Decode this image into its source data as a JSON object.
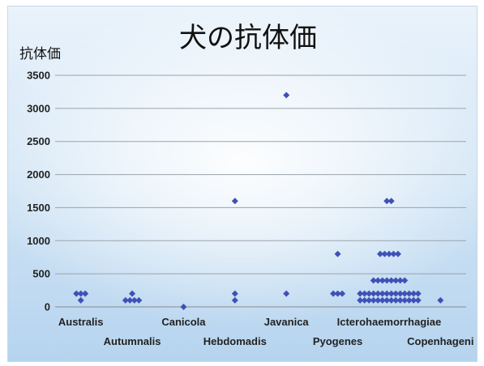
{
  "chart_data": {
    "type": "scatter",
    "title": "犬の抗体価",
    "ylabel": "抗体価",
    "xlabel": "",
    "ylim": [
      0,
      3500
    ],
    "yticks": [
      0,
      500,
      1000,
      1500,
      2000,
      2500,
      3000,
      3500
    ],
    "grid": true,
    "categories": [
      "Australis",
      "Autumnalis",
      "Canicola",
      "Hebdomadis",
      "Javanica",
      "Pyogenes",
      "Icterohaemorrhagiae",
      "Copenhageni"
    ],
    "marker_color": "#3f51b5",
    "points": [
      {
        "category": "Australis",
        "values": [
          200,
          200,
          200,
          100
        ]
      },
      {
        "category": "Autumnalis",
        "values": [
          200,
          100,
          100,
          100,
          100
        ]
      },
      {
        "category": "Canicola",
        "values": [
          0
        ]
      },
      {
        "category": "Hebdomadis",
        "values": [
          1600,
          200,
          100
        ]
      },
      {
        "category": "Javanica",
        "values": [
          3200,
          200
        ]
      },
      {
        "category": "Pyogenes",
        "values": [
          800,
          200,
          200,
          200
        ]
      },
      {
        "category": "Icterohaemorrhagiae",
        "values": [
          1600,
          1600,
          800,
          800,
          800,
          800,
          800,
          400,
          400,
          400,
          400,
          400,
          400,
          400,
          400,
          200,
          200,
          200,
          200,
          200,
          200,
          200,
          200,
          200,
          200,
          200,
          200,
          200,
          200,
          100,
          100,
          100,
          100,
          100,
          100,
          100,
          100,
          100,
          100,
          100,
          100,
          100,
          100
        ]
      },
      {
        "category": "Copenhageni",
        "values": [
          100
        ]
      }
    ]
  }
}
